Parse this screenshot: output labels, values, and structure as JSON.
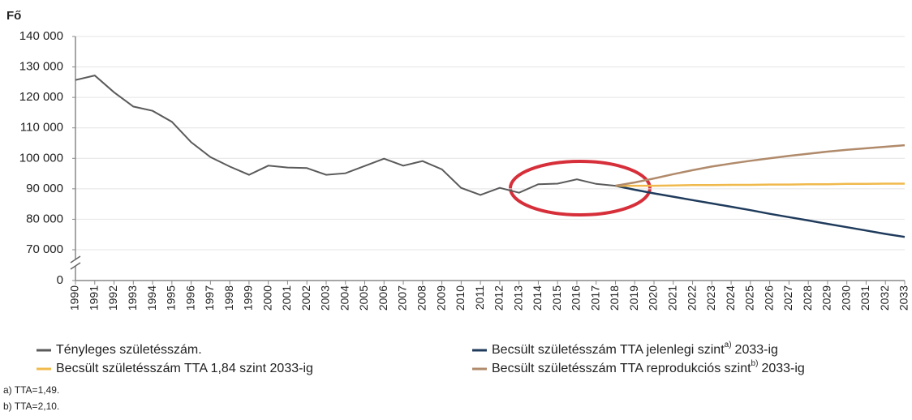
{
  "chart_data": {
    "type": "line",
    "y_label": "Fő",
    "categories": [
      "1990",
      "1991",
      "1992",
      "1993",
      "1994",
      "1995",
      "1996",
      "1997",
      "1998",
      "1999",
      "2000",
      "2001",
      "2002",
      "2003",
      "2004",
      "2005",
      "2006",
      "2007",
      "2008",
      "2009",
      "2010",
      "2011",
      "2012",
      "2013",
      "2014",
      "2015",
      "2016",
      "2017",
      "2018",
      "2019",
      "2020",
      "2021",
      "2022",
      "2023",
      "2024",
      "2025",
      "2026",
      "2027",
      "2028",
      "2029",
      "2030",
      "2031",
      "2032",
      "2033"
    ],
    "ylim": [
      0,
      140000
    ],
    "axis_break": true,
    "yticks": [
      {
        "value": 0,
        "label": "0"
      },
      {
        "value": 70000,
        "label": "70 000"
      },
      {
        "value": 80000,
        "label": "80 000"
      },
      {
        "value": 90000,
        "label": "90 000"
      },
      {
        "value": 100000,
        "label": "100 000"
      },
      {
        "value": 110000,
        "label": "110 000"
      },
      {
        "value": 120000,
        "label": "120 000"
      },
      {
        "value": 130000,
        "label": "130 000"
      },
      {
        "value": 140000,
        "label": "140 000"
      }
    ],
    "grid": true,
    "series": [
      {
        "name": "Tényleges születésszám.",
        "color": "#5a5a5a",
        "values": [
          125700,
          127200,
          121700,
          117000,
          115600,
          112000,
          105300,
          100400,
          97300,
          94600,
          97600,
          97000,
          96800,
          94600,
          95100,
          97500,
          99900,
          97600,
          99100,
          96400,
          90300,
          88000,
          90300,
          88700,
          91500,
          91700,
          93100,
          91600,
          91000,
          null,
          null,
          null,
          null,
          null,
          null,
          null,
          null,
          null,
          null,
          null,
          null,
          null,
          null,
          null
        ]
      },
      {
        "name": "Becsült születésszám TTA jelenlegi szint",
        "footnote_ref": "a)",
        "name_after": "2033-ig",
        "color": "#1f3b5c",
        "values": [
          null,
          null,
          null,
          null,
          null,
          null,
          null,
          null,
          null,
          null,
          null,
          null,
          null,
          null,
          null,
          null,
          null,
          null,
          null,
          null,
          null,
          null,
          null,
          null,
          null,
          null,
          null,
          null,
          91000,
          89700,
          88500,
          87400,
          86300,
          85200,
          84100,
          83000,
          81800,
          80700,
          79600,
          78500,
          77400,
          76300,
          75200,
          74200
        ]
      },
      {
        "name": "Becsült születésszám TTA 1,84 szint 2033-ig",
        "color": "#f0b94c",
        "values": [
          null,
          null,
          null,
          null,
          null,
          null,
          null,
          null,
          null,
          null,
          null,
          null,
          null,
          null,
          null,
          null,
          null,
          null,
          null,
          null,
          null,
          null,
          null,
          null,
          null,
          null,
          null,
          null,
          91000,
          91000,
          91000,
          91100,
          91200,
          91200,
          91300,
          91300,
          91400,
          91400,
          91500,
          91500,
          91600,
          91600,
          91700,
          91700
        ]
      },
      {
        "name": "Becsült születésszám TTA reprodukciós szint",
        "footnote_ref": "b)",
        "name_after": "2033-ig",
        "color": "#b08a6a",
        "values": [
          null,
          null,
          null,
          null,
          null,
          null,
          null,
          null,
          null,
          null,
          null,
          null,
          null,
          null,
          null,
          null,
          null,
          null,
          null,
          null,
          null,
          null,
          null,
          null,
          null,
          null,
          null,
          null,
          91000,
          92100,
          93400,
          94800,
          96100,
          97300,
          98300,
          99200,
          100000,
          100800,
          101500,
          102200,
          102800,
          103300,
          103800,
          104300
        ]
      }
    ],
    "footnotes": [
      "a) TTA=1,49.",
      "b) TTA=2,10."
    ]
  }
}
